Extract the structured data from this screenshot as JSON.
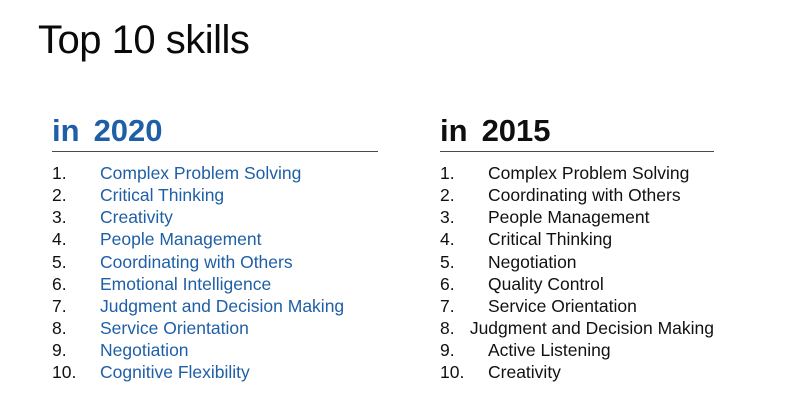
{
  "title": "Top 10 skills",
  "columns": [
    {
      "prefix": "in",
      "year": "2020",
      "accent_color": "#1f5fa6",
      "items": [
        {
          "rank": "1.",
          "skill": "Complex Problem Solving"
        },
        {
          "rank": "2.",
          "skill": "Critical Thinking"
        },
        {
          "rank": "3.",
          "skill": "Creativity"
        },
        {
          "rank": "4.",
          "skill": "People Management"
        },
        {
          "rank": "5.",
          "skill": "Coordinating with Others"
        },
        {
          "rank": "6.",
          "skill": "Emotional Intelligence"
        },
        {
          "rank": "7.",
          "skill": "Judgment and Decision Making"
        },
        {
          "rank": "8.",
          "skill": "Service Orientation"
        },
        {
          "rank": "9.",
          "skill": "Negotiation"
        },
        {
          "rank": "10.",
          "skill": "Cognitive Flexibility"
        }
      ]
    },
    {
      "prefix": "in",
      "year": "2015",
      "accent_color": "#0f0f0f",
      "items": [
        {
          "rank": "1.",
          "skill": "Complex Problem Solving"
        },
        {
          "rank": "2.",
          "skill": "Coordinating with Others"
        },
        {
          "rank": "3.",
          "skill": "People Management"
        },
        {
          "rank": "4.",
          "skill": "Critical Thinking"
        },
        {
          "rank": "5.",
          "skill": "Negotiation"
        },
        {
          "rank": "6.",
          "skill": "Quality Control"
        },
        {
          "rank": "7.",
          "skill": "Service Orientation"
        },
        {
          "rank": "8.",
          "skill": "Judgment and Decision Making"
        },
        {
          "rank": "9.",
          "skill": "Active Listening"
        },
        {
          "rank": "10.",
          "skill": "Creativity"
        }
      ]
    }
  ]
}
